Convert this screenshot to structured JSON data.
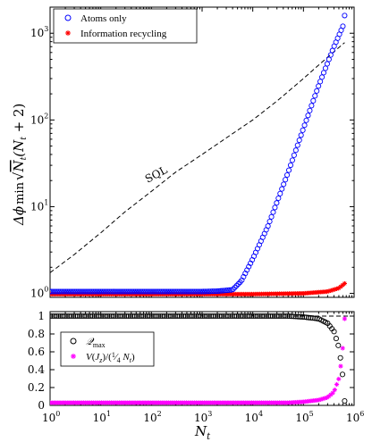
{
  "chart_data": [
    {
      "type": "scatter",
      "xscale": "log",
      "yscale": "log",
      "xlim": [
        1,
        1000000
      ],
      "ylim": [
        0.9,
        2000
      ],
      "ylabel": "Δφ min √(N_t(N_t+2))",
      "xlabel": "",
      "xticks": [
        {
          "base": "10",
          "exp": "0"
        },
        {
          "base": "10",
          "exp": "1"
        },
        {
          "base": "10",
          "exp": "2"
        },
        {
          "base": "10",
          "exp": "3"
        },
        {
          "base": "10",
          "exp": "4"
        },
        {
          "base": "10",
          "exp": "5"
        },
        {
          "base": "10",
          "exp": "6"
        }
      ],
      "yticks": [
        {
          "value": 1,
          "base": "10",
          "exp": "0"
        },
        {
          "value": 10,
          "base": "10",
          "exp": "1"
        },
        {
          "value": 100,
          "base": "10",
          "exp": "2"
        },
        {
          "value": 1000,
          "base": "10",
          "exp": "3"
        }
      ],
      "annotations": [
        {
          "text": "SQL",
          "x": 60,
          "y": 17
        }
      ],
      "legend": {
        "position": "top-left",
        "entries": [
          "Atoms only",
          "Information recycling"
        ]
      },
      "series": [
        {
          "name": "Atoms only",
          "marker": "circle",
          "color": "#0000ff",
          "x": [
            1,
            10.0,
            100.0,
            1000.0,
            2000.0,
            4000.0,
            6000.0,
            10000.0,
            20000.0,
            50000.0,
            100000.0,
            200000.0,
            400000.0,
            600000.0,
            650000.0
          ],
          "y": [
            1.05,
            1.05,
            1.05,
            1.05,
            1.06,
            1.1,
            1.4,
            2.5,
            6,
            25,
            80,
            250,
            700,
            1200,
            1600
          ]
        },
        {
          "name": "Information recycling",
          "marker": "asterisk",
          "color": "#ff0000",
          "x": [
            1,
            10.0,
            100.0,
            1000.0,
            10000.0,
            100000.0,
            300000.0,
            500000.0,
            650000.0
          ],
          "y": [
            0.98,
            0.98,
            0.98,
            0.98,
            0.98,
            1.0,
            1.05,
            1.15,
            1.3
          ]
        },
        {
          "name": "SQL",
          "marker": "dashed-line",
          "color": "#000000",
          "x": [
            1,
            3,
            10,
            30,
            100,
            300,
            1000.0,
            3000.0,
            10000.0,
            30000.0,
            100000.0,
            300000.0,
            650000.0
          ],
          "y": [
            1.73,
            2.8,
            5,
            8.7,
            15,
            25,
            40,
            62,
            100,
            165,
            300,
            530,
            780
          ]
        }
      ]
    },
    {
      "type": "scatter",
      "xscale": "log",
      "yscale": "linear",
      "xlim": [
        1,
        1000000
      ],
      "ylim": [
        0,
        1.05
      ],
      "xlabel": "N_t",
      "ylabel": "",
      "xticks": [
        {
          "base": "10",
          "exp": "0"
        },
        {
          "base": "10",
          "exp": "1"
        },
        {
          "base": "10",
          "exp": "2"
        },
        {
          "base": "10",
          "exp": "3"
        },
        {
          "base": "10",
          "exp": "4"
        },
        {
          "base": "10",
          "exp": "5"
        },
        {
          "base": "10",
          "exp": "6"
        }
      ],
      "yticks": [
        {
          "value": 0,
          "label": "0"
        },
        {
          "value": 0.2,
          "label": "0.2"
        },
        {
          "value": 0.4,
          "label": "0.4"
        },
        {
          "value": 0.6,
          "label": "0.6"
        },
        {
          "value": 0.8,
          "label": "0.8"
        },
        {
          "value": 1,
          "label": "1"
        }
      ],
      "legend": {
        "position": "center-left",
        "entries": [
          "Q_max",
          "V(J_z)/(¼ N_t)"
        ]
      },
      "series": [
        {
          "name": "Q_max",
          "marker": "circle",
          "color": "#000000",
          "x": [
            1,
            10.0,
            100.0,
            1000.0,
            10000.0,
            50000.0,
            100000.0,
            200000.0,
            300000.0,
            400000.0,
            500000.0,
            580000.0,
            620000.0,
            650000.0
          ],
          "y": [
            1.0,
            1.0,
            1.0,
            1.0,
            1.0,
            1.0,
            0.99,
            0.97,
            0.92,
            0.83,
            0.65,
            0.4,
            0.2,
            0.05
          ]
        },
        {
          "name": "V(J_z)/(¼ N_t)",
          "marker": "asterisk",
          "color": "#ff00ff",
          "x": [
            1,
            10.0,
            100.0,
            1000.0,
            10000.0,
            50000.0,
            100000.0,
            200000.0,
            300000.0,
            400000.0,
            500000.0,
            580000.0,
            620000.0,
            650000.0
          ],
          "y": [
            0.03,
            0.03,
            0.03,
            0.03,
            0.03,
            0.03,
            0.04,
            0.06,
            0.09,
            0.15,
            0.3,
            0.55,
            0.8,
            0.97
          ]
        }
      ],
      "reference_line": {
        "y": 1,
        "style": "dashed",
        "color": "#000000"
      }
    }
  ]
}
